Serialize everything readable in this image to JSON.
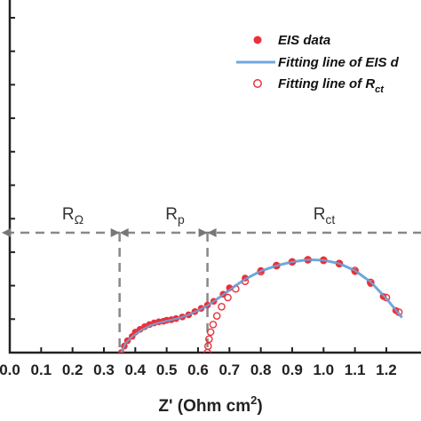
{
  "chart_data": {
    "type": "scatter",
    "xlabel_main": "Z' (Ohm cm",
    "xlabel_sup": "2",
    "xlabel_end": ")",
    "x_ticks": [
      "0.0",
      "0.1",
      "0.2",
      "0.3",
      "0.4",
      "0.5",
      "0.6",
      "0.7",
      "0.8",
      "0.9",
      "1.0",
      "1.1",
      "1.2"
    ],
    "xlim": [
      0.0,
      1.26
    ],
    "ylim": [
      0.0,
      0.6
    ],
    "legend": [
      {
        "label": "EIS data",
        "marker": "filled-circle",
        "color": "#e8313b"
      },
      {
        "label": "Fitting line of EIS d",
        "marker": "line",
        "color": "#6fa8dc"
      },
      {
        "label": "Fitting line of R",
        "label_sub": "ct",
        "marker": "open-circle",
        "color": "#e8313b"
      }
    ],
    "legend_position": "top-right",
    "regions": [
      {
        "label": "R",
        "label_sub": "Ω"
      },
      {
        "label": "R",
        "label_sub": "p"
      },
      {
        "label": "R",
        "label_sub": "ct"
      }
    ],
    "region_boundaries": [
      0.0,
      0.35,
      0.63,
      1.26
    ],
    "region_level": 0.215,
    "series": [
      {
        "name": "EIS data",
        "style": "filled",
        "color": "#e8313b",
        "points": [
          [
            0.355,
            0.0
          ],
          [
            0.365,
            0.012
          ],
          [
            0.375,
            0.022
          ],
          [
            0.39,
            0.03
          ],
          [
            0.4,
            0.038
          ],
          [
            0.415,
            0.043
          ],
          [
            0.43,
            0.048
          ],
          [
            0.445,
            0.052
          ],
          [
            0.46,
            0.055
          ],
          [
            0.475,
            0.057
          ],
          [
            0.49,
            0.058
          ],
          [
            0.5,
            0.06
          ],
          [
            0.515,
            0.061
          ],
          [
            0.53,
            0.063
          ],
          [
            0.55,
            0.066
          ],
          [
            0.57,
            0.07
          ],
          [
            0.59,
            0.076
          ],
          [
            0.61,
            0.082
          ],
          [
            0.63,
            0.088
          ],
          [
            0.65,
            0.095
          ],
          [
            0.68,
            0.108
          ],
          [
            0.7,
            0.12
          ],
          [
            0.75,
            0.138
          ],
          [
            0.8,
            0.152
          ],
          [
            0.85,
            0.162
          ],
          [
            0.9,
            0.168
          ],
          [
            0.95,
            0.172
          ],
          [
            1.0,
            0.172
          ],
          [
            1.05,
            0.164
          ],
          [
            1.1,
            0.15
          ],
          [
            1.15,
            0.128
          ],
          [
            1.19,
            0.104
          ],
          [
            1.23,
            0.078
          ]
        ]
      },
      {
        "name": "Fitting line of EIS data",
        "style": "line",
        "color": "#6fa8dc",
        "points": [
          [
            0.355,
            0.0
          ],
          [
            0.37,
            0.018
          ],
          [
            0.39,
            0.03
          ],
          [
            0.42,
            0.042
          ],
          [
            0.45,
            0.051
          ],
          [
            0.48,
            0.056
          ],
          [
            0.51,
            0.06
          ],
          [
            0.54,
            0.064
          ],
          [
            0.57,
            0.07
          ],
          [
            0.6,
            0.078
          ],
          [
            0.63,
            0.087
          ],
          [
            0.67,
            0.103
          ],
          [
            0.71,
            0.12
          ],
          [
            0.75,
            0.136
          ],
          [
            0.8,
            0.151
          ],
          [
            0.85,
            0.161
          ],
          [
            0.9,
            0.168
          ],
          [
            0.95,
            0.172
          ],
          [
            1.0,
            0.171
          ],
          [
            1.05,
            0.165
          ],
          [
            1.1,
            0.152
          ],
          [
            1.15,
            0.131
          ],
          [
            1.2,
            0.1
          ],
          [
            1.25,
            0.065
          ]
        ]
      },
      {
        "name": "Fitting line of Rct",
        "style": "open",
        "color": "#e8313b",
        "points": [
          [
            0.63,
            0.0
          ],
          [
            0.632,
            0.012
          ],
          [
            0.635,
            0.025
          ],
          [
            0.64,
            0.038
          ],
          [
            0.648,
            0.052
          ],
          [
            0.66,
            0.068
          ],
          [
            0.675,
            0.085
          ],
          [
            0.695,
            0.102
          ],
          [
            0.72,
            0.118
          ],
          [
            0.75,
            0.132
          ],
          [
            0.8,
            0.15
          ],
          [
            0.85,
            0.161
          ],
          [
            0.9,
            0.168
          ],
          [
            0.95,
            0.172
          ],
          [
            1.0,
            0.171
          ],
          [
            1.05,
            0.165
          ],
          [
            1.1,
            0.152
          ],
          [
            1.15,
            0.13
          ],
          [
            1.2,
            0.102
          ],
          [
            1.24,
            0.075
          ]
        ]
      }
    ]
  }
}
